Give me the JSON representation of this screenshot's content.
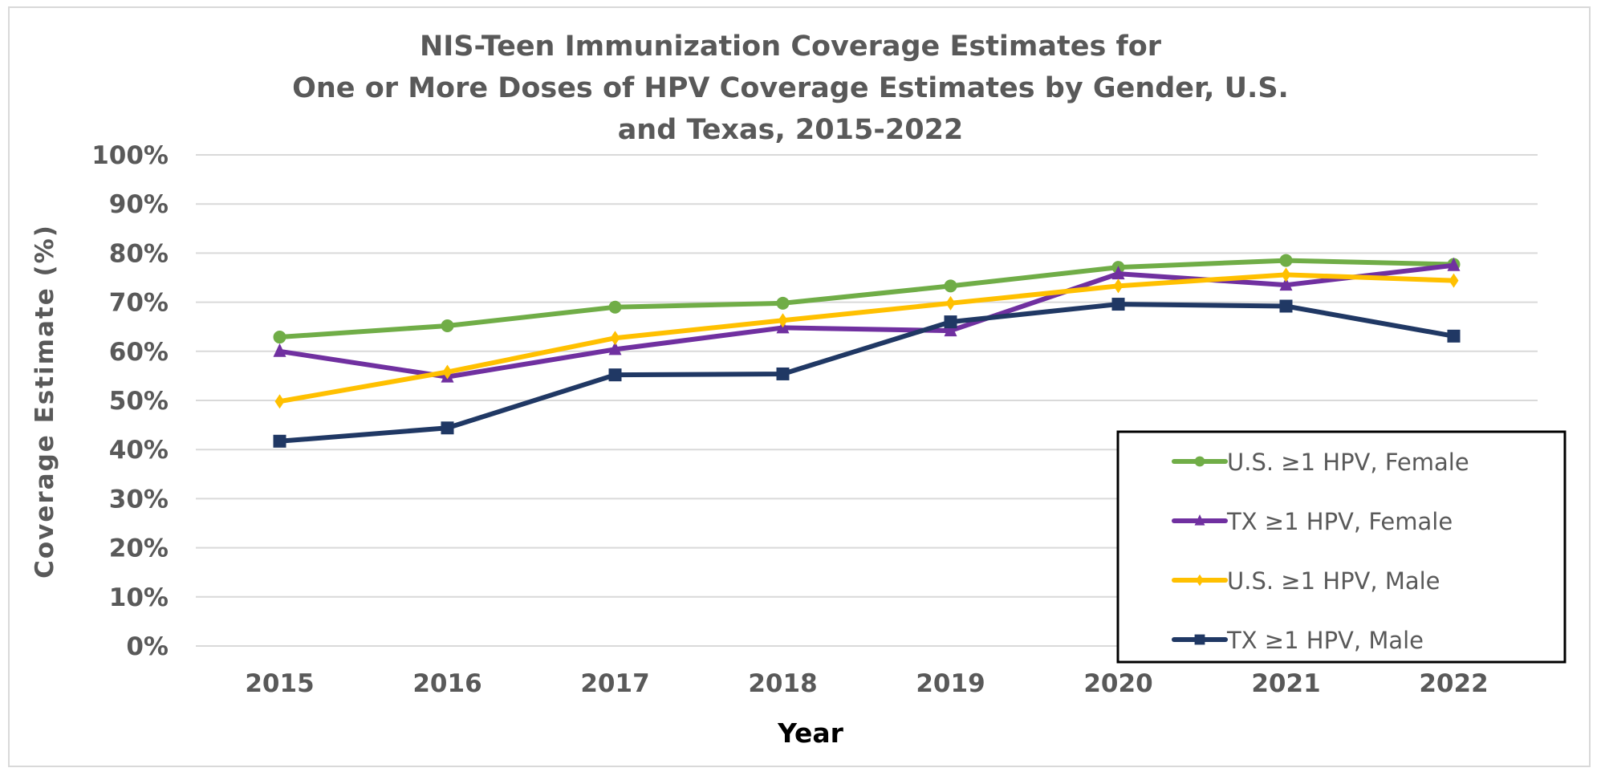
{
  "chart_data": {
    "type": "line",
    "title": [
      "NIS-Teen Immunization Coverage Estimates for",
      "One or More Doses of HPV Coverage Estimates by Gender, U.S.",
      "and Texas, 2015-2022"
    ],
    "xlabel": "Year",
    "ylabel": "Coverage Estimate (%)",
    "categories": [
      "2015",
      "2016",
      "2017",
      "2018",
      "2019",
      "2020",
      "2021",
      "2022"
    ],
    "ylim": [
      0,
      100
    ],
    "yticks": [
      "0%",
      "10%",
      "20%",
      "30%",
      "40%",
      "50%",
      "60%",
      "70%",
      "80%",
      "90%",
      "100%"
    ],
    "grid": true,
    "legend_position": "bottom-right",
    "series": [
      {
        "name": "U.S. ≥1 HPV, Female",
        "color": "#70ad47",
        "marker": "circle",
        "values": [
          62.9,
          65.2,
          69.0,
          69.8,
          73.3,
          77.1,
          78.5,
          77.7
        ]
      },
      {
        "name": "TX ≥1 HPV, Female",
        "color": "#7030a0",
        "marker": "triangle",
        "values": [
          60.0,
          54.8,
          60.4,
          64.8,
          64.2,
          75.8,
          73.5,
          77.5
        ]
      },
      {
        "name": "U.S. ≥1 HPV, Male",
        "color": "#ffc000",
        "marker": "diamond",
        "values": [
          49.8,
          55.8,
          62.7,
          66.3,
          69.8,
          73.3,
          75.6,
          74.4
        ]
      },
      {
        "name": "TX ≥1 HPV, Male",
        "color": "#203864",
        "marker": "square",
        "values": [
          41.7,
          44.4,
          55.2,
          55.4,
          66.0,
          69.6,
          69.2,
          63.1
        ]
      }
    ]
  }
}
